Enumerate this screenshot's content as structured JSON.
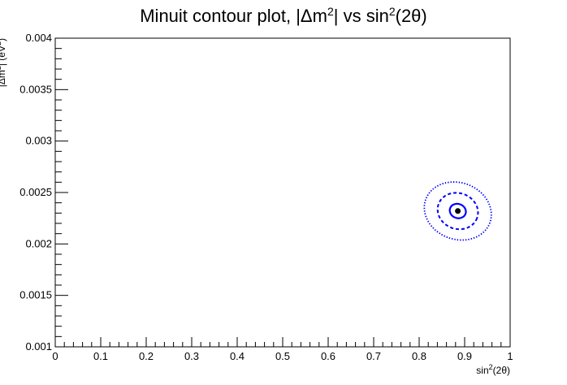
{
  "chart_data": {
    "type": "scatter",
    "title": "Minuit contour plot, |Δm²| vs sin²(2θ)",
    "title_parts": {
      "a": "Minuit contour plot, |Δm",
      "b": "2",
      "c": "| vs sin",
      "d": "2",
      "e": "(2θ)"
    },
    "xlabel": "sin²(2θ)",
    "xlabel_parts": {
      "a": "sin",
      "b": "2",
      "c": "(2θ)"
    },
    "ylabel": "|Δm²| (eV²)",
    "ylabel_parts": {
      "a": "|Δm",
      "b": "2",
      "c": "| (eV",
      "d": "2",
      "e": ")"
    },
    "xlim": [
      0,
      1
    ],
    "ylim": [
      0.001,
      0.004
    ],
    "x_ticks": [
      "0",
      "0.1",
      "0.2",
      "0.3",
      "0.4",
      "0.5",
      "0.6",
      "0.7",
      "0.8",
      "0.9",
      "1"
    ],
    "y_ticks": [
      "0.001",
      "0.0015",
      "0.002",
      "0.0025",
      "0.003",
      "0.0035",
      "0.004"
    ],
    "grid": false,
    "best_fit": {
      "x": 0.885,
      "y": 0.00232,
      "color": "#000000"
    },
    "contours": [
      {
        "style": "solid",
        "color": "#0000ff",
        "center": [
          0.885,
          0.00232
        ],
        "rx": 0.018,
        "ry": 6.88e-05,
        "tilt_deg": 20
      },
      {
        "style": "dashed",
        "color": "#0000ff",
        "center": [
          0.885,
          0.00232
        ],
        "rx": 0.045,
        "ry": 0.000174,
        "tilt_deg": 20
      },
      {
        "style": "dotted",
        "color": "#0000ff",
        "center": [
          0.885,
          0.00232
        ],
        "rx": 0.075,
        "ry": 0.000275,
        "tilt_deg": 20
      }
    ]
  }
}
